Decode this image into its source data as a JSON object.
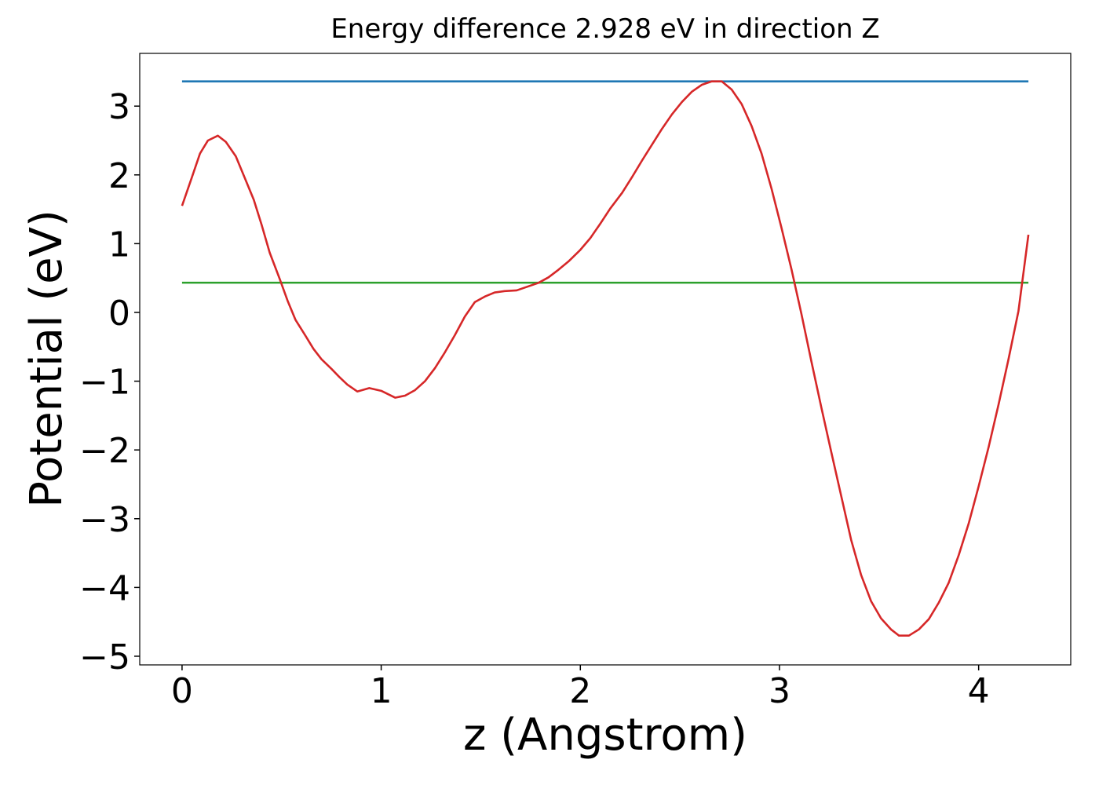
{
  "chart_data": {
    "type": "line",
    "title": "Energy difference 2.928 eV in direction Z",
    "xlabel": "z (Angstrom)",
    "ylabel": "Potential (eV)",
    "xlim": [
      -0.2125,
      4.4625
    ],
    "ylim": [
      -5.126,
      3.767
    ],
    "xticks": [
      0,
      1,
      2,
      3,
      4
    ],
    "yticks": [
      3,
      2,
      1,
      0,
      {
        "value": -1,
        "label": "−1"
      },
      {
        "value": -2,
        "label": "−2"
      },
      {
        "value": -3,
        "label": "−3"
      },
      {
        "value": -4,
        "label": "−4"
      },
      {
        "value": -5,
        "label": "−5"
      }
    ],
    "series": [
      {
        "color": "#1f77b4",
        "x": [
          0,
          4.25
        ],
        "values": [
          3.36,
          3.36
        ]
      },
      {
        "color": "#2ca02c",
        "x": [
          0,
          4.25
        ],
        "values": [
          0.432,
          0.432
        ]
      },
      {
        "color": "#d62728",
        "x": [
          0,
          0.05,
          0.09,
          0.13,
          0.18,
          0.22,
          0.27,
          0.31,
          0.36,
          0.4,
          0.44,
          0.49,
          0.53,
          0.57,
          0.62,
          0.66,
          0.7,
          0.75,
          0.79,
          0.83,
          0.88,
          0.94,
          1.0,
          1.07,
          1.12,
          1.17,
          1.22,
          1.27,
          1.32,
          1.37,
          1.42,
          1.47,
          1.52,
          1.57,
          1.62,
          1.68,
          1.74,
          1.79,
          1.84,
          1.89,
          1.94,
          2.0,
          2.05,
          2.1,
          2.15,
          2.21,
          2.26,
          2.31,
          2.36,
          2.41,
          2.46,
          2.51,
          2.56,
          2.61,
          2.66,
          2.71,
          2.76,
          2.81,
          2.86,
          2.91,
          2.96,
          3.01,
          3.06,
          3.11,
          3.16,
          3.21,
          3.26,
          3.31,
          3.36,
          3.41,
          3.46,
          3.51,
          3.56,
          3.6,
          3.65,
          3.7,
          3.75,
          3.8,
          3.85,
          3.9,
          3.95,
          4.0,
          4.05,
          4.1,
          4.15,
          4.2,
          4.25
        ],
        "values": [
          1.55,
          1.97,
          2.31,
          2.5,
          2.57,
          2.48,
          2.27,
          1.99,
          1.64,
          1.27,
          0.87,
          0.49,
          0.17,
          -0.11,
          -0.34,
          -0.53,
          -0.68,
          -0.82,
          -0.94,
          -1.05,
          -1.15,
          -1.1,
          -1.14,
          -1.24,
          -1.21,
          -1.13,
          -1.0,
          -0.81,
          -0.58,
          -0.33,
          -0.06,
          0.15,
          0.23,
          0.29,
          0.31,
          0.32,
          0.38,
          0.43,
          0.51,
          0.62,
          0.74,
          0.91,
          1.08,
          1.29,
          1.51,
          1.74,
          1.97,
          2.21,
          2.44,
          2.67,
          2.88,
          3.06,
          3.21,
          3.31,
          3.36,
          3.36,
          3.24,
          3.03,
          2.71,
          2.31,
          1.8,
          1.23,
          0.63,
          -0.02,
          -0.71,
          -1.38,
          -2.03,
          -2.67,
          -3.31,
          -3.82,
          -4.2,
          -4.45,
          -4.61,
          -4.7,
          -4.7,
          -4.61,
          -4.46,
          -4.22,
          -3.93,
          -3.53,
          -3.07,
          -2.53,
          -1.96,
          -1.34,
          -0.68,
          0.02,
          1.13
        ]
      }
    ]
  }
}
